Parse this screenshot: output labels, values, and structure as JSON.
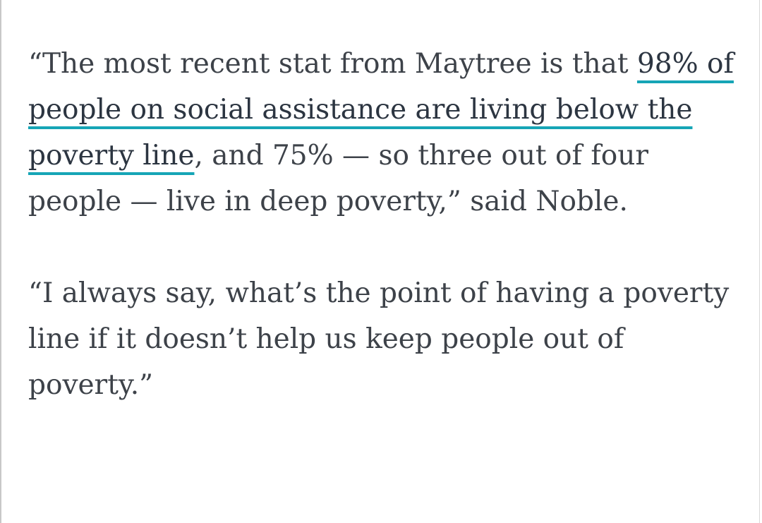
{
  "article": {
    "paragraphs": [
      {
        "before": "“The most recent stat from Maytree is that ",
        "link": "98% of people on social assistance are living below the poverty line",
        "after": ", and 75% — so three out of four people — live in deep poverty,” said Noble."
      },
      {
        "text": "“I always say, what’s the point of having a poverty line if it doesn’t help us keep people out of poverty.”"
      }
    ],
    "link_color": "#16a5b6"
  }
}
